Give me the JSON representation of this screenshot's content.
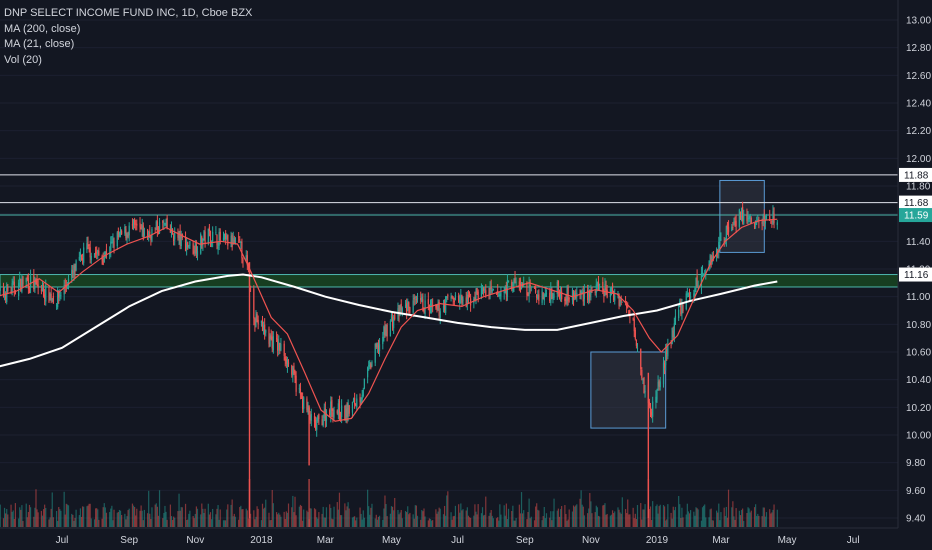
{
  "chart_data": {
    "type": "candlestick",
    "title": "DNP SELECT INCOME FUND INC, 1D, Cboe BZX",
    "indicators": [
      "MA (200, close)",
      "MA (21, close)",
      "Vol (20)"
    ],
    "y_axis": {
      "ticks": [
        "13.00",
        "12.80",
        "12.60",
        "12.40",
        "12.20",
        "12.00",
        "11.80",
        "11.60",
        "11.40",
        "11.20",
        "11.00",
        "10.80",
        "10.60",
        "10.40",
        "10.20",
        "10.00",
        "9.80",
        "9.60",
        "9.40"
      ],
      "range": [
        9.36,
        13.06
      ]
    },
    "x_axis": {
      "ticks": [
        "Jul",
        "Sep",
        "Nov",
        "2018",
        "Mar",
        "May",
        "Jul",
        "Sep",
        "Nov",
        "2019",
        "Mar",
        "May",
        "Jul"
      ],
      "range": [
        "2017-05-01",
        "2019-09-01"
      ]
    },
    "price_labels": [
      {
        "value": 11.88,
        "text": "11.88",
        "style": "line"
      },
      {
        "value": 11.68,
        "text": "11.68",
        "style": "line"
      },
      {
        "value": 11.59,
        "text": "11.59",
        "style": "current"
      },
      {
        "value": 11.16,
        "text": "11.16",
        "style": "line"
      }
    ],
    "horizontal_lines": [
      11.88,
      11.68,
      11.59
    ],
    "support_zone": [
      11.07,
      11.16
    ],
    "boxes": [
      {
        "date_from": "2019-02-28",
        "date_to": "2019-04-10",
        "price_from": 11.32,
        "price_to": 11.84
      },
      {
        "date_from": "2018-11-01",
        "date_to": "2019-01-09",
        "price_from": 10.05,
        "price_to": 10.6
      }
    ],
    "ma200_path": [
      [
        "2017-05-01",
        10.49
      ],
      [
        "2017-06-01",
        10.55
      ],
      [
        "2017-07-01",
        10.63
      ],
      [
        "2017-08-01",
        10.78
      ],
      [
        "2017-09-01",
        10.93
      ],
      [
        "2017-10-01",
        11.04
      ],
      [
        "2017-11-01",
        11.11
      ],
      [
        "2017-12-01",
        11.15
      ],
      [
        "2017-12-15",
        11.16
      ],
      [
        "2018-01-01",
        11.14
      ],
      [
        "2018-02-01",
        11.07
      ],
      [
        "2018-03-01",
        11.0
      ],
      [
        "2018-04-01",
        10.94
      ],
      [
        "2018-05-01",
        10.89
      ],
      [
        "2018-06-01",
        10.85
      ],
      [
        "2018-07-01",
        10.81
      ],
      [
        "2018-08-01",
        10.78
      ],
      [
        "2018-09-01",
        10.76
      ],
      [
        "2018-10-01",
        10.76
      ],
      [
        "2018-11-01",
        10.81
      ],
      [
        "2018-12-01",
        10.86
      ],
      [
        "2019-01-01",
        10.9
      ],
      [
        "2019-02-01",
        10.97
      ],
      [
        "2019-03-01",
        11.02
      ],
      [
        "2019-04-01",
        11.08
      ],
      [
        "2019-04-22",
        11.11
      ]
    ],
    "ma21_path": [
      [
        "2017-05-01",
        11.0
      ],
      [
        "2017-05-20",
        11.04
      ],
      [
        "2017-06-10",
        11.13
      ],
      [
        "2017-06-28",
        11.03
      ],
      [
        "2017-07-20",
        11.18
      ],
      [
        "2017-08-10",
        11.3
      ],
      [
        "2017-08-30",
        11.38
      ],
      [
        "2017-09-20",
        11.44
      ],
      [
        "2017-10-05",
        11.5
      ],
      [
        "2017-10-20",
        11.44
      ],
      [
        "2017-11-05",
        11.38
      ],
      [
        "2017-11-25",
        11.4
      ],
      [
        "2017-12-10",
        11.38
      ],
      [
        "2017-12-20",
        11.22
      ],
      [
        "2018-01-10",
        10.85
      ],
      [
        "2018-01-25",
        10.73
      ],
      [
        "2018-02-10",
        10.45
      ],
      [
        "2018-02-25",
        10.18
      ],
      [
        "2018-03-10",
        10.1
      ],
      [
        "2018-03-25",
        10.12
      ],
      [
        "2018-04-10",
        10.3
      ],
      [
        "2018-04-25",
        10.55
      ],
      [
        "2018-05-10",
        10.78
      ],
      [
        "2018-05-25",
        10.9
      ],
      [
        "2018-06-15",
        10.95
      ],
      [
        "2018-07-05",
        10.93
      ],
      [
        "2018-07-25",
        11.0
      ],
      [
        "2018-08-15",
        11.05
      ],
      [
        "2018-09-05",
        11.1
      ],
      [
        "2018-09-25",
        11.05
      ],
      [
        "2018-10-15",
        11.0
      ],
      [
        "2018-11-05",
        11.05
      ],
      [
        "2018-11-25",
        11.02
      ],
      [
        "2018-12-10",
        10.9
      ],
      [
        "2018-12-25",
        10.7
      ],
      [
        "2019-01-05",
        10.6
      ],
      [
        "2019-01-20",
        10.72
      ],
      [
        "2019-02-05",
        11.0
      ],
      [
        "2019-02-20",
        11.25
      ],
      [
        "2019-03-05",
        11.4
      ],
      [
        "2019-03-20",
        11.5
      ],
      [
        "2019-04-05",
        11.55
      ],
      [
        "2019-04-22",
        11.56
      ]
    ],
    "price_path": [
      [
        "2017-05-01",
        11.0
      ],
      [
        "2017-05-15",
        11.05
      ],
      [
        "2017-05-29",
        11.12
      ],
      [
        "2017-06-12",
        11.05
      ],
      [
        "2017-06-26",
        10.98
      ],
      [
        "2017-07-10",
        11.15
      ],
      [
        "2017-07-24",
        11.35
      ],
      [
        "2017-08-07",
        11.28
      ],
      [
        "2017-08-21",
        11.42
      ],
      [
        "2017-09-04",
        11.5
      ],
      [
        "2017-09-18",
        11.45
      ],
      [
        "2017-10-02",
        11.52
      ],
      [
        "2017-10-16",
        11.42
      ],
      [
        "2017-10-30",
        11.35
      ],
      [
        "2017-11-13",
        11.45
      ],
      [
        "2017-11-27",
        11.4
      ],
      [
        "2017-12-11",
        11.38
      ],
      [
        "2017-12-18",
        11.25
      ],
      [
        "2017-12-26",
        10.85
      ],
      [
        "2018-01-08",
        10.7
      ],
      [
        "2018-01-22",
        10.6
      ],
      [
        "2018-02-05",
        10.3
      ],
      [
        "2018-02-19",
        10.05
      ],
      [
        "2018-03-05",
        10.2
      ],
      [
        "2018-03-19",
        10.15
      ],
      [
        "2018-04-02",
        10.28
      ],
      [
        "2018-04-16",
        10.6
      ],
      [
        "2018-04-30",
        10.82
      ],
      [
        "2018-05-14",
        10.92
      ],
      [
        "2018-05-28",
        10.95
      ],
      [
        "2018-06-11",
        10.88
      ],
      [
        "2018-06-25",
        11.0
      ],
      [
        "2018-07-09",
        10.95
      ],
      [
        "2018-07-23",
        11.05
      ],
      [
        "2018-08-06",
        11.0
      ],
      [
        "2018-08-20",
        11.1
      ],
      [
        "2018-09-03",
        11.05
      ],
      [
        "2018-09-17",
        11.0
      ],
      [
        "2018-10-01",
        11.05
      ],
      [
        "2018-10-15",
        11.0
      ],
      [
        "2018-10-29",
        11.03
      ],
      [
        "2018-11-12",
        11.05
      ],
      [
        "2018-11-26",
        11.0
      ],
      [
        "2018-12-10",
        10.85
      ],
      [
        "2018-12-20",
        10.35
      ],
      [
        "2018-12-26",
        10.15
      ],
      [
        "2019-01-07",
        10.5
      ],
      [
        "2019-01-21",
        10.9
      ],
      [
        "2019-02-04",
        11.05
      ],
      [
        "2019-02-18",
        11.25
      ],
      [
        "2019-03-04",
        11.45
      ],
      [
        "2019-03-18",
        11.6
      ],
      [
        "2019-04-01",
        11.52
      ],
      [
        "2019-04-15",
        11.58
      ],
      [
        "2019-04-22",
        11.59
      ]
    ],
    "spikes": [
      {
        "date": "2017-12-21",
        "low": 9.4,
        "high": 11.25
      },
      {
        "date": "2018-02-14",
        "low": 9.78,
        "high": 10.2
      },
      {
        "date": "2018-12-24",
        "low": 9.4,
        "high": 10.45
      }
    ],
    "colors": {
      "background": "#131722",
      "up": "#26a69a",
      "down": "#ef5350",
      "ma200": "#ffffff",
      "ma21": "#ef5350",
      "current_price": "#26a69a",
      "zone": "#1b5e20",
      "text": "#d1d4dc"
    }
  }
}
